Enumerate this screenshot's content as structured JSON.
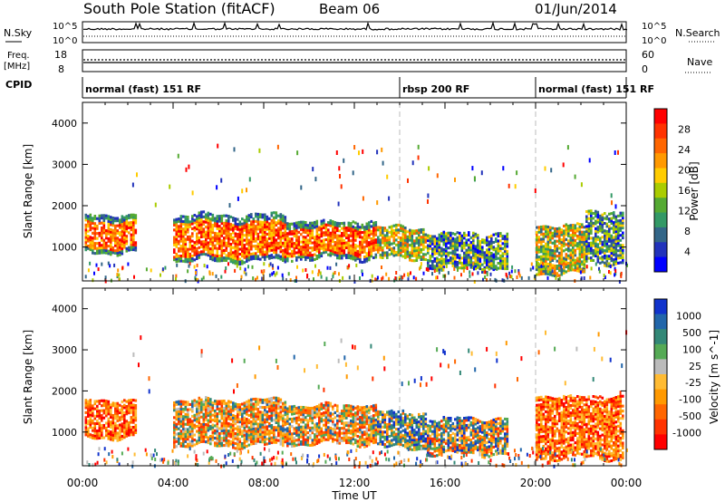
{
  "header": {
    "station": "South Pole Station (fitACF)",
    "beam": "Beam 06",
    "date": "01/Jun/2014"
  },
  "strips": {
    "nsky_label": "N.Sky",
    "nsky_ticks": [
      "10^5",
      "10^0"
    ],
    "nsearch_label": "N.Search",
    "nsearch_ticks": [
      "10^5",
      "10^0"
    ],
    "freq_label_1": "Freq.",
    "freq_label_2": "[MHz]",
    "freq_ticks": [
      "18",
      "8"
    ],
    "nave_label": "Nave",
    "nave_ticks": [
      "60",
      "0"
    ],
    "cpid_label": "CPID"
  },
  "cpid_segments": [
    {
      "label": "normal (fast) 151 RF",
      "start_h": 0,
      "end_h": 14
    },
    {
      "label": "rbsp 200 RF",
      "start_h": 14,
      "end_h": 20
    },
    {
      "label": "normal (fast) 151 RF",
      "start_h": 20,
      "end_h": 24
    }
  ],
  "chart_data": [
    {
      "type": "heatmap",
      "title": "Power",
      "ylabel": "Slant Range [km]",
      "ylim": [
        180,
        4500
      ],
      "yticks": [
        1000,
        2000,
        3000,
        4000
      ],
      "xlim": [
        0,
        24
      ],
      "mode_change_hours": [
        14,
        20
      ],
      "colorbar": {
        "label": "Power [dB]",
        "ticks": [
          "28",
          "24",
          "20",
          "16",
          "12",
          "8",
          "4"
        ],
        "colors": [
          "#ff0000",
          "#ff3300",
          "#ff6600",
          "#ff9900",
          "#ffcc00",
          "#aacc00",
          "#55aa33",
          "#339966",
          "#336688",
          "#2233bb",
          "#0000ff"
        ]
      },
      "bands": [
        {
          "start_h": 0.1,
          "end_h": 2.4,
          "low_km": 850,
          "high_km": 1750,
          "level": "high"
        },
        {
          "start_h": 4.0,
          "end_h": 9.0,
          "low_km": 650,
          "high_km": 1750,
          "level": "high"
        },
        {
          "start_h": 9.0,
          "end_h": 13.0,
          "low_km": 700,
          "high_km": 1600,
          "level": "high"
        },
        {
          "start_h": 13.0,
          "end_h": 15.2,
          "low_km": 700,
          "high_km": 1450,
          "level": "medium"
        },
        {
          "start_h": 15.2,
          "end_h": 18.8,
          "low_km": 450,
          "high_km": 1300,
          "level": "low"
        },
        {
          "start_h": 20.0,
          "end_h": 22.2,
          "low_km": 350,
          "high_km": 1500,
          "level": "medium"
        },
        {
          "start_h": 22.2,
          "end_h": 23.9,
          "low_km": 600,
          "high_km": 1850,
          "level": "low"
        }
      ]
    },
    {
      "type": "heatmap",
      "title": "Velocity",
      "ylabel": "Slant Range [km]",
      "xlabel": "Time UT",
      "ylim": [
        180,
        4500
      ],
      "yticks": [
        1000,
        2000,
        3000,
        4000
      ],
      "xlim": [
        0,
        24
      ],
      "xticks": [
        "00:00",
        "04:00",
        "08:00",
        "12:00",
        "16:00",
        "20:00",
        "00:00"
      ],
      "mode_change_hours": [
        14,
        20
      ],
      "colorbar": {
        "label": "Velocity [m s^-1]",
        "ticks": [
          "1000",
          "500",
          "100",
          "25",
          "-25",
          "-100",
          "-500",
          "-1000"
        ],
        "colors": [
          "#1133cc",
          "#2266aa",
          "#338877",
          "#55aa55",
          "#bbbbbb",
          "#ffbb33",
          "#ff9900",
          "#ff6600",
          "#ff3300",
          "#ff0000"
        ]
      },
      "bands": [
        {
          "start_h": 0.1,
          "end_h": 2.4,
          "low_km": 850,
          "high_km": 1750,
          "level": "neg"
        },
        {
          "start_h": 4.0,
          "end_h": 9.0,
          "low_km": 650,
          "high_km": 1750,
          "level": "negmix"
        },
        {
          "start_h": 9.0,
          "end_h": 13.0,
          "low_km": 700,
          "high_km": 1650,
          "level": "negmix"
        },
        {
          "start_h": 13.0,
          "end_h": 15.2,
          "low_km": 600,
          "high_km": 1450,
          "level": "pos"
        },
        {
          "start_h": 15.2,
          "end_h": 18.8,
          "low_km": 450,
          "high_km": 1300,
          "level": "posmix"
        },
        {
          "start_h": 20.0,
          "end_h": 23.9,
          "low_km": 350,
          "high_km": 1850,
          "level": "neg"
        }
      ]
    }
  ]
}
